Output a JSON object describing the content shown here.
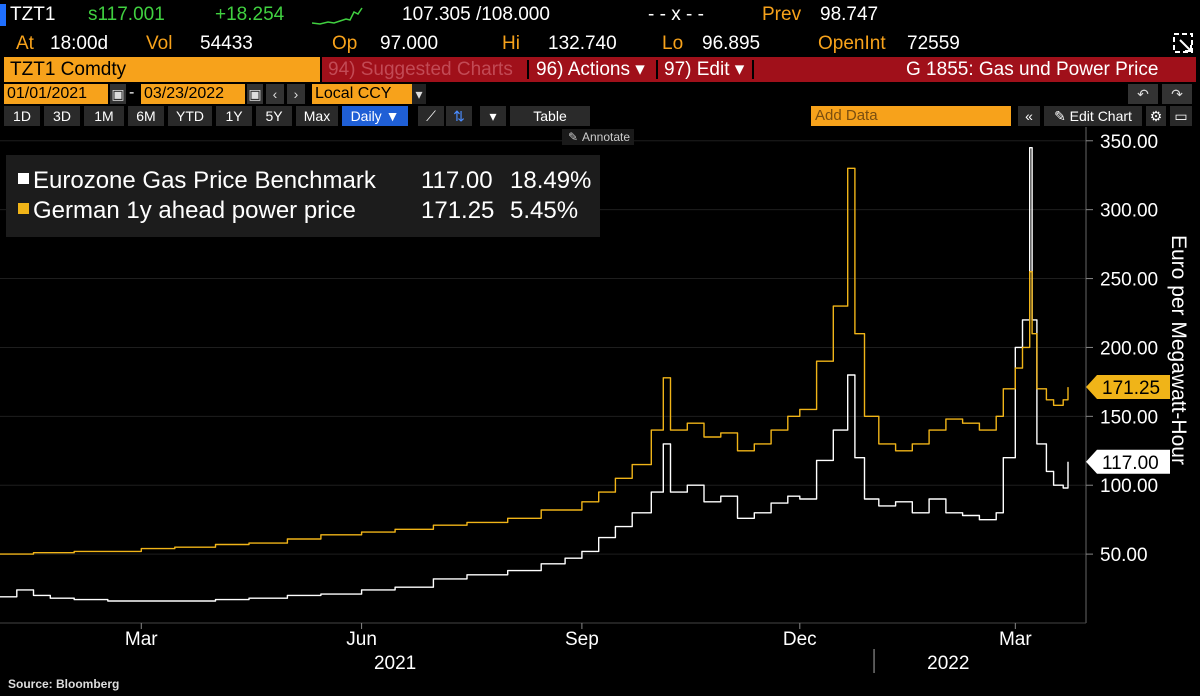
{
  "header": {
    "ticker": "TZT1",
    "last": "s117.001",
    "change": "+18.254",
    "bid_ask": "107.305 /108.000",
    "dashes": "- - x - -",
    "prev_label": "Prev",
    "prev_value": "98.747",
    "at_label": "At",
    "at_value": "18:00d",
    "vol_label": "Vol",
    "vol_value": "54433",
    "op_label": "Op",
    "op_value": "97.000",
    "hi_label": "Hi",
    "hi_value": "132.740",
    "lo_label": "Lo",
    "lo_value": "96.895",
    "oi_label": "OpenInt",
    "oi_value": "72559"
  },
  "toolbar": {
    "security": "TZT1 Comdty",
    "suggested": "94) Suggested Charts",
    "actions": "96) Actions ▾",
    "edit": "97) Edit ▾",
    "chart_title": "G 1855: Gas und Power Price",
    "start_date": "01/01/2021",
    "end_date": "03/23/2022",
    "dash": "-",
    "currency": "Local CCY",
    "periods": [
      "1D",
      "3D",
      "1M",
      "6M",
      "YTD",
      "1Y",
      "5Y",
      "Max"
    ],
    "frequency": "Daily ▼",
    "table": "Table",
    "add_data": "Add Data",
    "edit_chart": "✎ Edit Chart",
    "annotate": "Annotate"
  },
  "legend": [
    {
      "name": "Eurozone Gas Price Benchmark",
      "value": "117.00",
      "change": "18.49%",
      "color": "#ffffff"
    },
    {
      "name": "German 1y ahead power price",
      "value": "171.25",
      "change": "5.45%",
      "color": "#f0b418"
    }
  ],
  "source": "Source: Bloomberg",
  "chart_data": {
    "type": "line",
    "ylabel": "Euro per Megawatt-Hour",
    "ylim": [
      0,
      360
    ],
    "yticks": [
      "50.00",
      "100.00",
      "150.00",
      "200.00",
      "250.00",
      "300.00",
      "350.00"
    ],
    "ytick_values": [
      50,
      100,
      150,
      200,
      250,
      300,
      350
    ],
    "xrange": [
      "2021-01-01",
      "2022-03-23"
    ],
    "xticks": [
      {
        "date": "2021-03-01",
        "label": "Mar"
      },
      {
        "date": "2021-06-01",
        "label": "Jun"
      },
      {
        "date": "2021-09-01",
        "label": "Sep"
      },
      {
        "date": "2021-12-01",
        "label": "Dec"
      },
      {
        "date": "2022-03-01",
        "label": "Mar"
      }
    ],
    "year_labels": [
      {
        "date": "2021-06-15",
        "label": "2021"
      },
      {
        "date": "2022-02-01",
        "label": "2022"
      }
    ],
    "year_divider": "2022-01-01",
    "last_labels": [
      {
        "value": 171.25,
        "label": "171.25",
        "series": 1
      },
      {
        "value": 117.0,
        "label": "117.00",
        "series": 0
      }
    ],
    "series": [
      {
        "name": "Eurozone Gas Price Benchmark",
        "color": "#ffffff",
        "points": [
          [
            "2021-01-01",
            19
          ],
          [
            "2021-01-08",
            24
          ],
          [
            "2021-01-15",
            20
          ],
          [
            "2021-01-22",
            18
          ],
          [
            "2021-02-01",
            17
          ],
          [
            "2021-02-15",
            16
          ],
          [
            "2021-03-01",
            16
          ],
          [
            "2021-03-15",
            16
          ],
          [
            "2021-04-01",
            17
          ],
          [
            "2021-04-15",
            18
          ],
          [
            "2021-05-01",
            20
          ],
          [
            "2021-05-15",
            21
          ],
          [
            "2021-06-01",
            24
          ],
          [
            "2021-06-15",
            26
          ],
          [
            "2021-07-01",
            32
          ],
          [
            "2021-07-15",
            35
          ],
          [
            "2021-08-01",
            38
          ],
          [
            "2021-08-15",
            43
          ],
          [
            "2021-08-25",
            47
          ],
          [
            "2021-09-01",
            52
          ],
          [
            "2021-09-08",
            62
          ],
          [
            "2021-09-15",
            70
          ],
          [
            "2021-09-22",
            80
          ],
          [
            "2021-09-30",
            95
          ],
          [
            "2021-10-05",
            130
          ],
          [
            "2021-10-08",
            95
          ],
          [
            "2021-10-15",
            100
          ],
          [
            "2021-10-22",
            88
          ],
          [
            "2021-10-29",
            92
          ],
          [
            "2021-11-05",
            76
          ],
          [
            "2021-11-12",
            80
          ],
          [
            "2021-11-19",
            87
          ],
          [
            "2021-11-26",
            92
          ],
          [
            "2021-12-01",
            90
          ],
          [
            "2021-12-08",
            118
          ],
          [
            "2021-12-15",
            140
          ],
          [
            "2021-12-21",
            180
          ],
          [
            "2021-12-24",
            120
          ],
          [
            "2021-12-28",
            90
          ],
          [
            "2022-01-03",
            85
          ],
          [
            "2022-01-10",
            88
          ],
          [
            "2022-01-17",
            80
          ],
          [
            "2022-01-24",
            90
          ],
          [
            "2022-01-31",
            80
          ],
          [
            "2022-02-07",
            78
          ],
          [
            "2022-02-14",
            75
          ],
          [
            "2022-02-21",
            80
          ],
          [
            "2022-02-24",
            120
          ],
          [
            "2022-03-01",
            200
          ],
          [
            "2022-03-04",
            220
          ],
          [
            "2022-03-07",
            345
          ],
          [
            "2022-03-08",
            220
          ],
          [
            "2022-03-10",
            130
          ],
          [
            "2022-03-14",
            110
          ],
          [
            "2022-03-17",
            100
          ],
          [
            "2022-03-21",
            98
          ],
          [
            "2022-03-23",
            117
          ]
        ]
      },
      {
        "name": "German 1y ahead power price",
        "color": "#f0b418",
        "points": [
          [
            "2021-01-01",
            50
          ],
          [
            "2021-01-15",
            51
          ],
          [
            "2021-02-01",
            52
          ],
          [
            "2021-02-15",
            52
          ],
          [
            "2021-03-01",
            54
          ],
          [
            "2021-03-15",
            55
          ],
          [
            "2021-04-01",
            57
          ],
          [
            "2021-04-15",
            58
          ],
          [
            "2021-05-01",
            61
          ],
          [
            "2021-05-15",
            64
          ],
          [
            "2021-06-01",
            66
          ],
          [
            "2021-06-15",
            68
          ],
          [
            "2021-07-01",
            71
          ],
          [
            "2021-07-15",
            73
          ],
          [
            "2021-08-01",
            76
          ],
          [
            "2021-08-15",
            82
          ],
          [
            "2021-09-01",
            88
          ],
          [
            "2021-09-08",
            95
          ],
          [
            "2021-09-15",
            105
          ],
          [
            "2021-09-22",
            115
          ],
          [
            "2021-09-30",
            140
          ],
          [
            "2021-10-05",
            178
          ],
          [
            "2021-10-08",
            140
          ],
          [
            "2021-10-15",
            145
          ],
          [
            "2021-10-22",
            135
          ],
          [
            "2021-10-29",
            138
          ],
          [
            "2021-11-05",
            125
          ],
          [
            "2021-11-12",
            130
          ],
          [
            "2021-11-19",
            140
          ],
          [
            "2021-11-26",
            150
          ],
          [
            "2021-12-01",
            155
          ],
          [
            "2021-12-08",
            190
          ],
          [
            "2021-12-15",
            230
          ],
          [
            "2021-12-21",
            330
          ],
          [
            "2021-12-24",
            210
          ],
          [
            "2021-12-28",
            150
          ],
          [
            "2022-01-03",
            130
          ],
          [
            "2022-01-10",
            125
          ],
          [
            "2022-01-17",
            130
          ],
          [
            "2022-01-24",
            140
          ],
          [
            "2022-01-31",
            148
          ],
          [
            "2022-02-07",
            145
          ],
          [
            "2022-02-14",
            140
          ],
          [
            "2022-02-21",
            150
          ],
          [
            "2022-02-24",
            170
          ],
          [
            "2022-03-01",
            185
          ],
          [
            "2022-03-04",
            200
          ],
          [
            "2022-03-07",
            255
          ],
          [
            "2022-03-08",
            210
          ],
          [
            "2022-03-10",
            170
          ],
          [
            "2022-03-14",
            162
          ],
          [
            "2022-03-17",
            158
          ],
          [
            "2022-03-21",
            162
          ],
          [
            "2022-03-23",
            171.25
          ]
        ]
      }
    ]
  }
}
